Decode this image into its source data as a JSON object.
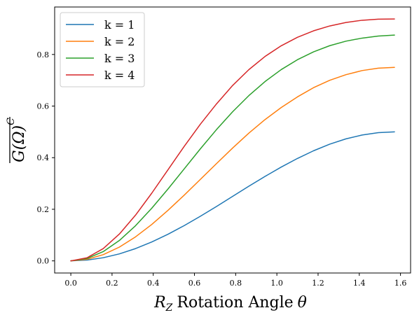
{
  "chart_data": {
    "type": "line",
    "xlabel_var": "R",
    "xlabel_sub": "Z",
    "xlabel_text": "Rotation Angle",
    "xlabel_symbol": "θ",
    "ylabel_main": "G(Ω)",
    "ylabel_sup": "C",
    "xlim": [
      -0.0785,
      1.649
    ],
    "ylim": [
      -0.047,
      0.984
    ],
    "x_ticks": [
      0.0,
      0.2,
      0.4,
      0.6,
      0.8,
      1.0,
      1.2,
      1.4,
      1.6
    ],
    "x_tick_labels": [
      "0.0",
      "0.2",
      "0.4",
      "0.6",
      "0.8",
      "1.0",
      "1.2",
      "1.4",
      "1.6"
    ],
    "y_ticks": [
      0.0,
      0.2,
      0.4,
      0.6,
      0.8
    ],
    "y_tick_labels": [
      "0.0",
      "0.2",
      "0.4",
      "0.6",
      "0.8"
    ],
    "grid": false,
    "legend_position": "top-left",
    "x": [
      0.0,
      0.0785,
      0.1571,
      0.2356,
      0.3142,
      0.3927,
      0.4712,
      0.5498,
      0.6283,
      0.7069,
      0.7854,
      0.864,
      0.9425,
      1.021,
      1.0996,
      1.1781,
      1.2566,
      1.3352,
      1.4137,
      1.4923,
      1.5708
    ],
    "series": [
      {
        "name": "k = 1",
        "color": "#1f77b4",
        "values": [
          0.0,
          0.0031,
          0.0122,
          0.0271,
          0.0477,
          0.0732,
          0.1031,
          0.1365,
          0.1727,
          0.2107,
          0.25,
          0.2893,
          0.3273,
          0.3635,
          0.3969,
          0.4268,
          0.4523,
          0.4729,
          0.4878,
          0.4969,
          0.5
        ]
      },
      {
        "name": "k = 2",
        "color": "#ff7f0e",
        "values": [
          0.0,
          0.0061,
          0.024,
          0.0534,
          0.0932,
          0.1411,
          0.1956,
          0.2544,
          0.3156,
          0.3769,
          0.4375,
          0.4951,
          0.5476,
          0.5944,
          0.6355,
          0.6714,
          0.7,
          0.7216,
          0.7376,
          0.7469,
          0.75
        ]
      },
      {
        "name": "k = 3",
        "color": "#2ca02c",
        "values": [
          0.0,
          0.0092,
          0.0358,
          0.0791,
          0.1364,
          0.204,
          0.2783,
          0.356,
          0.4339,
          0.5087,
          0.5781,
          0.6405,
          0.695,
          0.7413,
          0.7796,
          0.8103,
          0.8341,
          0.8516,
          0.8634,
          0.8714,
          0.875
        ]
      },
      {
        "name": "k = 4",
        "color": "#d62728",
        "values": [
          0.0,
          0.0121,
          0.0475,
          0.104,
          0.1774,
          0.2623,
          0.3528,
          0.4433,
          0.5294,
          0.6083,
          0.68,
          0.7412,
          0.7923,
          0.8337,
          0.8664,
          0.8917,
          0.9105,
          0.9239,
          0.9326,
          0.9369,
          0.9375
        ]
      }
    ]
  }
}
